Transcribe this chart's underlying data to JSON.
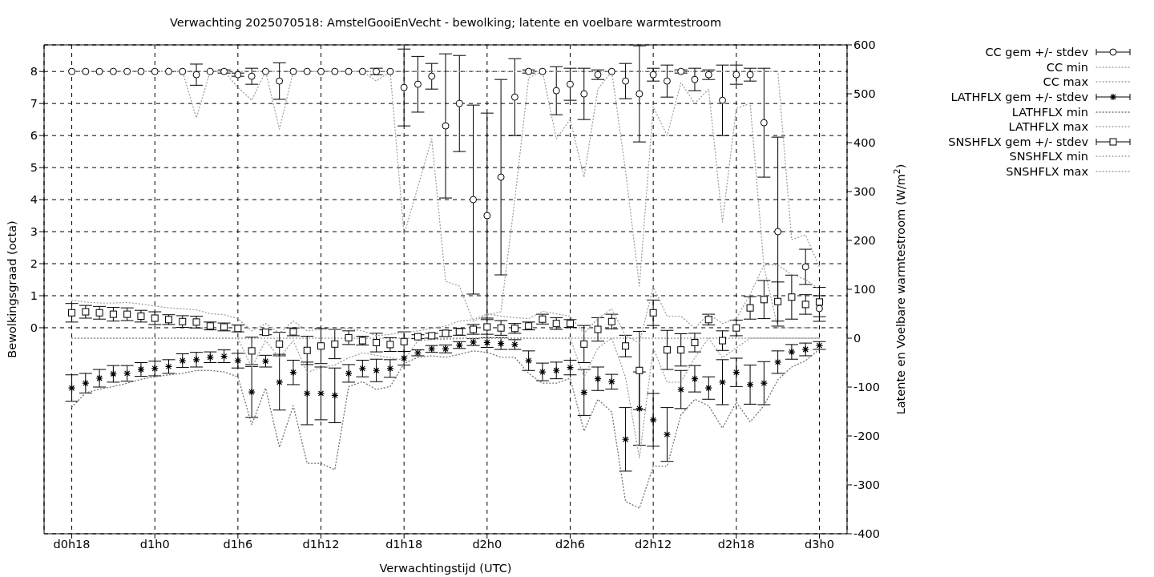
{
  "chart_data": {
    "type": "scatter",
    "title": "Verwachting 2025070518: AmstelGooiEnVecht - bewolking; latente en voelbare warmtestroom",
    "xlabel": "Verwachtingstijd (UTC)",
    "ylabel": "Bewolkingsgraad (octa)",
    "y2label": "Latente en Voelbare warmtestroom (W/m$^{2}$)",
    "categories": [
      "d0h18",
      null,
      null,
      null,
      null,
      null,
      "d1h0",
      null,
      null,
      null,
      null,
      null,
      "d1h6",
      null,
      null,
      null,
      null,
      null,
      "d1h12",
      null,
      null,
      null,
      null,
      null,
      "d1h18",
      null,
      null,
      null,
      null,
      null,
      "d2h0",
      null,
      null,
      null,
      null,
      null,
      "d2h6",
      null,
      null,
      null,
      null,
      null,
      "d2h12",
      null,
      null,
      null,
      null,
      null,
      "d2h18",
      null,
      null,
      null,
      null,
      null,
      "d3h0"
    ],
    "ylim": [
      -6.43,
      8.83
    ],
    "yticks": [
      0,
      1,
      2,
      3,
      4,
      5,
      6,
      7,
      8
    ],
    "y2lim": [
      -400,
      600
    ],
    "y2ticks": [
      -400,
      -300,
      -200,
      -100,
      0,
      100,
      200,
      300,
      400,
      500,
      600
    ],
    "grid": true,
    "legend": "top right",
    "series": [
      {
        "name": "CC gem +/- stdev",
        "marker": "circle",
        "color": "#000000",
        "values": [
          8,
          8,
          8,
          8,
          8,
          8,
          8,
          8,
          8,
          7.9,
          8,
          8,
          7.9,
          7.85,
          8,
          7.7,
          8,
          8,
          8,
          8,
          8,
          8,
          8,
          8,
          7.5,
          7.6,
          7.85,
          6.3,
          7.0,
          4.0,
          3.5,
          4.7,
          7.2,
          8,
          8,
          7.4,
          7.6,
          7.3,
          7.9,
          8,
          7.7,
          7.3,
          7.9,
          7.7,
          8,
          7.75,
          7.9,
          7.1,
          7.9,
          7.9,
          6.4,
          3.0,
          null,
          1.9,
          0.6
        ],
        "errors": [
          0,
          0,
          0,
          0,
          0,
          0,
          0,
          0,
          0,
          0.33,
          0,
          0.05,
          0.05,
          0.25,
          0,
          0.57,
          0,
          0,
          0,
          0,
          0,
          0,
          0.1,
          0,
          1.2,
          0.87,
          0.4,
          2.25,
          1.5,
          2.95,
          3.2,
          3.05,
          1.2,
          0.05,
          0,
          0.75,
          0.5,
          0.8,
          0.15,
          0,
          0.55,
          1.5,
          0.2,
          0.5,
          0.05,
          0.35,
          0.15,
          1.1,
          0.3,
          0.2,
          1.7,
          2.95,
          null,
          0.55,
          0.4
        ]
      },
      {
        "name": "CC min",
        "type": "line",
        "line_style": "dotted",
        "marker": "none",
        "color": "#a0a0a0",
        "values": [
          8,
          8,
          8,
          8,
          8,
          8,
          8,
          8,
          8,
          6.55,
          8,
          8,
          7.5,
          7.1,
          8,
          6.2,
          8,
          8,
          8,
          8,
          8,
          8,
          7.7,
          8,
          2.9,
          4.4,
          5.9,
          1.45,
          1.3,
          0.2,
          0.4,
          0.5,
          4.0,
          7.8,
          8,
          5.9,
          6.5,
          4.7,
          7.45,
          8,
          4.9,
          1.3,
          6.9,
          6.0,
          7.65,
          7.0,
          7.45,
          3.3,
          6.85,
          7.0,
          1.9,
          0,
          0,
          0,
          0
        ]
      },
      {
        "name": "CC max",
        "type": "line",
        "line_style": "dotted",
        "marker": "none",
        "color": "#a0a0a0",
        "values": [
          8,
          8,
          8,
          8,
          8,
          8,
          8,
          8,
          8,
          8,
          8,
          8,
          8,
          8,
          8,
          8,
          8,
          8,
          8,
          8,
          8,
          8,
          8,
          8,
          8,
          8,
          8,
          8,
          8,
          8,
          8,
          8,
          8,
          8,
          8,
          8,
          8,
          8,
          8,
          8,
          8,
          8,
          8,
          8,
          8,
          8,
          8,
          8,
          8,
          8,
          8,
          8,
          2.75,
          2.9,
          1.9
        ]
      },
      {
        "name": "LATHFLX gem +/- stdev",
        "marker": "cross",
        "axis": "y2",
        "color": "#000000",
        "values": [
          -102,
          -92,
          -82,
          -73,
          -72,
          -64,
          -62,
          -58,
          -46,
          -44,
          -39,
          -37,
          -46,
          -110,
          -47,
          -90,
          -70,
          -113,
          -113,
          -117,
          -72,
          -62,
          -66,
          -62,
          -41,
          -30,
          -22,
          -22,
          -14,
          -8,
          -9,
          -11,
          -13,
          -46,
          -69,
          -66,
          -60,
          -111,
          -83,
          -89,
          -207,
          -144,
          -167,
          -197,
          -105,
          -83,
          -102,
          -90,
          -70,
          -95,
          -92,
          -49,
          -28,
          -23,
          -15
        ],
        "errors": [
          27,
          20,
          18,
          17,
          16,
          14,
          15,
          14,
          14,
          15,
          11,
          13,
          15,
          52,
          12,
          57,
          25,
          64,
          54,
          56,
          18,
          17,
          23,
          18,
          14,
          6,
          7,
          8,
          7,
          7,
          10,
          12,
          10,
          20,
          18,
          17,
          15,
          47,
          24,
          15,
          65,
          75,
          54,
          55,
          39,
          27,
          23,
          46,
          29,
          40,
          44,
          23,
          15,
          13,
          8
        ]
      },
      {
        "name": "LATHFLX min",
        "type": "line",
        "line_style": "dotted",
        "marker": "none",
        "axis": "y2",
        "color": "#707070",
        "values": [
          -141,
          -112,
          -104,
          -99,
          -92,
          -84,
          -79,
          -75,
          -72,
          -66,
          -66,
          -69,
          -79,
          -177,
          -102,
          -223,
          -138,
          -256,
          -256,
          -269,
          -99,
          -89,
          -105,
          -99,
          -52,
          -39,
          -36,
          -39,
          -33,
          -26,
          -29,
          -39,
          -39,
          -72,
          -92,
          -92,
          -82,
          -190,
          -125,
          -151,
          -334,
          -348,
          -262,
          -262,
          -157,
          -125,
          -138,
          -184,
          -131,
          -171,
          -138,
          -85,
          -59,
          -46,
          -23
        ]
      },
      {
        "name": "LATHFLX max",
        "type": "line",
        "line_style": "dotted",
        "marker": "none",
        "axis": "y2",
        "color": "#a0a0a0",
        "values": [
          0,
          0,
          0,
          0,
          0,
          0,
          0,
          0,
          0,
          0,
          0,
          0,
          0,
          0,
          0,
          0,
          0,
          0,
          0,
          0,
          0,
          0,
          0,
          0,
          0,
          0,
          0,
          0,
          0,
          0,
          0,
          0,
          0,
          0,
          0,
          0,
          0,
          0,
          0,
          0,
          0,
          0,
          0,
          0,
          0,
          0,
          0,
          0,
          0,
          0,
          0,
          0,
          0,
          0,
          0
        ]
      },
      {
        "name": "SNSHFLX gem +/- stdev",
        "marker": "square",
        "axis": "y2",
        "color": "#000000",
        "values": [
          52,
          54,
          52,
          49,
          49,
          45,
          41,
          38,
          34,
          33,
          25,
          23,
          20,
          -26,
          12,
          -12,
          13,
          -25,
          -16,
          -12,
          1,
          -5,
          -9,
          -13,
          -7,
          3,
          5,
          10,
          13,
          18,
          23,
          21,
          20,
          25,
          39,
          30,
          30,
          -12,
          18,
          34,
          -16,
          -66,
          52,
          -24,
          -24,
          -9,
          38,
          -5,
          21,
          62,
          79,
          75,
          84,
          69,
          74
        ],
        "errors": [
          19,
          13,
          13,
          14,
          13,
          12,
          13,
          10,
          12,
          12,
          8,
          8,
          7,
          28,
          5,
          24,
          8,
          29,
          36,
          30,
          14,
          9,
          19,
          14,
          20,
          4,
          5,
          6,
          7,
          10,
          15,
          15,
          10,
          8,
          10,
          12,
          8,
          38,
          24,
          15,
          22,
          80,
          26,
          40,
          33,
          19,
          11,
          20,
          16,
          23,
          39,
          40,
          45,
          20,
          30
        ]
      },
      {
        "name": "SNSHFLX min",
        "type": "line",
        "line_style": "dotted",
        "marker": "none",
        "axis": "y2",
        "color": "#a0a0a0",
        "values": [
          0,
          0,
          0,
          0,
          0,
          0,
          0,
          0,
          0,
          0,
          0,
          0,
          0,
          -60,
          -5,
          -40,
          -5,
          -70,
          -60,
          -55,
          -40,
          -30,
          -35,
          -40,
          -45,
          -5,
          -3,
          -2,
          -1,
          0,
          0,
          0,
          0,
          0,
          0,
          0,
          0,
          -80,
          -20,
          0,
          -80,
          -245,
          -20,
          -90,
          -90,
          -40,
          0,
          -40,
          -20,
          0,
          0,
          0,
          0,
          0,
          0
        ]
      },
      {
        "name": "SNSHFLX max",
        "type": "line",
        "line_style": "dotted",
        "marker": "none",
        "axis": "y2",
        "color": "#a0a0a0",
        "values": [
          78,
          74,
          72,
          72,
          73,
          70,
          66,
          62,
          60,
          58,
          50,
          48,
          40,
          15,
          30,
          10,
          35,
          15,
          18,
          18,
          20,
          15,
          5,
          8,
          12,
          15,
          20,
          25,
          35,
          38,
          50,
          45,
          42,
          40,
          55,
          50,
          45,
          10,
          40,
          60,
          5,
          -10,
          105,
          45,
          45,
          20,
          50,
          30,
          40,
          90,
          150,
          150,
          130,
          120,
          100
        ]
      }
    ]
  }
}
